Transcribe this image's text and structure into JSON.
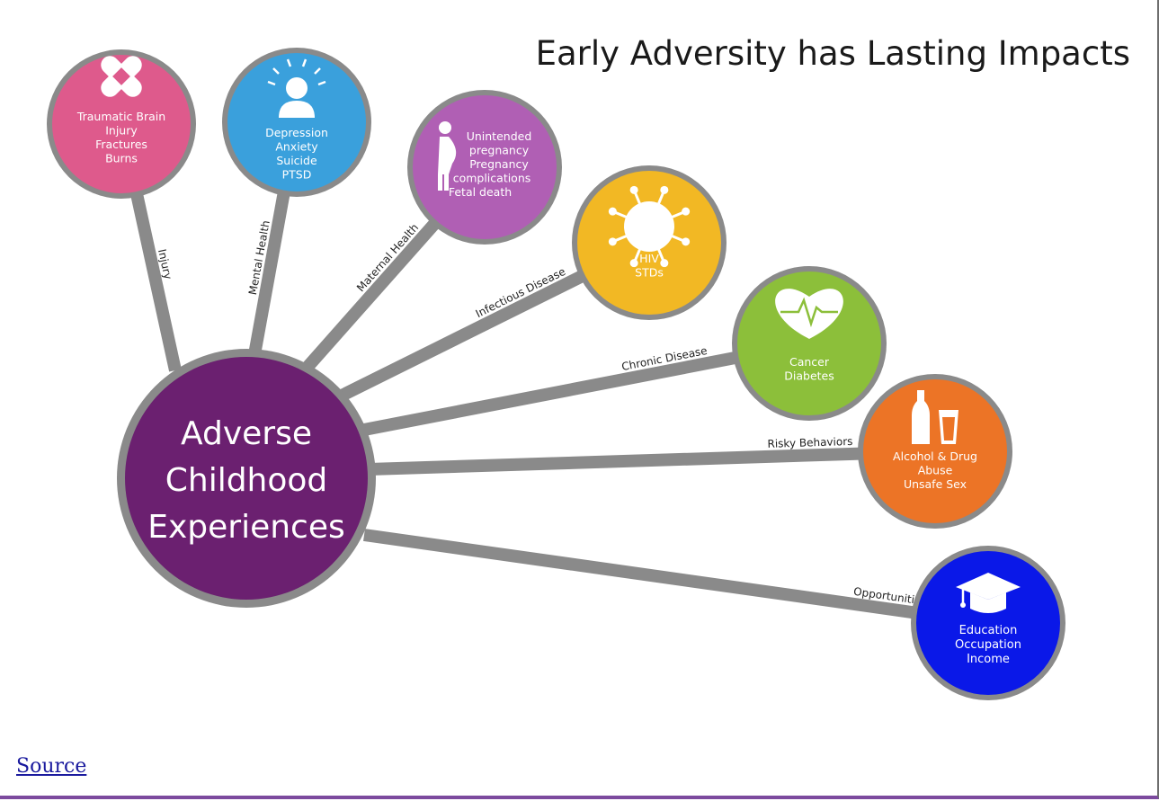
{
  "title": "Early Adversity has Lasting Impacts",
  "center": {
    "lines": [
      "Adverse",
      "Childhood",
      "Experiences"
    ],
    "color": "#6b2070"
  },
  "nodes": [
    {
      "id": "injury",
      "spoke": "Injury",
      "color": "#de5a8c",
      "icon": "bandage-icon",
      "lines": [
        "Traumatic Brain",
        "Injury",
        "Fractures",
        "Burns"
      ]
    },
    {
      "id": "mental-health",
      "spoke": "Mental Health",
      "color": "#3aa0dc",
      "icon": "person-icon",
      "lines": [
        "Depression",
        "Anxiety",
        "Suicide",
        "PTSD"
      ]
    },
    {
      "id": "maternal-health",
      "spoke": "Maternal Health",
      "color": "#b05fb4",
      "icon": "pregnant-woman-icon",
      "lines": [
        "Unintended",
        "pregnancy",
        "Pregnancy",
        "complications",
        "Fetal death"
      ]
    },
    {
      "id": "infectious-disease",
      "spoke": "Infectious Disease",
      "color": "#f2b824",
      "icon": "virus-icon",
      "lines": [
        "HIV",
        "STDs"
      ]
    },
    {
      "id": "chronic-disease",
      "spoke": "Chronic Disease",
      "color": "#8cbf3a",
      "icon": "heart-icon",
      "lines": [
        "Cancer",
        "Diabetes"
      ]
    },
    {
      "id": "risky-behaviors",
      "spoke": "Risky Behaviors",
      "color": "#ec7426",
      "icon": "bottle-glass-icon",
      "lines": [
        "Alcohol & Drug",
        "Abuse",
        "Unsafe Sex"
      ]
    },
    {
      "id": "opportunities",
      "spoke": "Opportunities",
      "color": "#0a18e8",
      "icon": "graduation-cap-icon",
      "lines": [
        "Education",
        "Occupation",
        "Income"
      ]
    }
  ],
  "source_label": "Source"
}
